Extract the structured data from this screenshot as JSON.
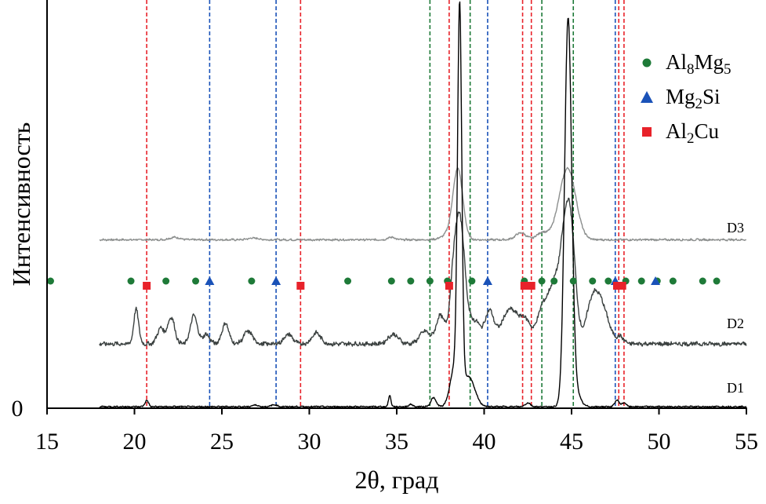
{
  "chart_data": {
    "type": "line",
    "xlabel": "2θ, град",
    "ylabel": "Интенсивность",
    "xlim": [
      15,
      55
    ],
    "x_ticks": [
      "15",
      "20",
      "25",
      "30",
      "35",
      "40",
      "45",
      "50",
      "55"
    ],
    "y_ticks": [
      "0"
    ],
    "grid": false,
    "legend_placement": "top-right",
    "legend": [
      {
        "base": "Al",
        "sub1": "8",
        "mid": "Mg",
        "sub2": "5",
        "marker": "circle",
        "color": "#1e7a38"
      },
      {
        "base": "Mg",
        "sub1": "2",
        "mid": "Si",
        "sub2": "",
        "marker": "triangle",
        "color": "#1a52b8"
      },
      {
        "base": "Al",
        "sub1": "2",
        "mid": "Cu",
        "sub2": "",
        "marker": "square",
        "color": "#e8222a"
      }
    ],
    "series": [
      {
        "name": "D3",
        "color": "#8c8f8e",
        "baseline": 3,
        "noise": 0.5,
        "peaks": [
          [
            22.3,
            1.4,
            0.3
          ],
          [
            26.8,
            1.0,
            0.3
          ],
          [
            34.7,
            1.5,
            0.2
          ],
          [
            38.0,
            3,
            0.4
          ],
          [
            38.5,
            40,
            0.28
          ],
          [
            42.1,
            4,
            0.3
          ],
          [
            43.3,
            4,
            0.3
          ],
          [
            44.2,
            4,
            0.4
          ],
          [
            44.8,
            40,
            0.45
          ]
        ]
      },
      {
        "name": "D2",
        "color": "#3b4140",
        "baseline": 0,
        "noise": 0.6,
        "peaks": [
          [
            20.1,
            11,
            0.14
          ],
          [
            21.5,
            5,
            0.2
          ],
          [
            22.1,
            8.5,
            0.2
          ],
          [
            23.4,
            9,
            0.2
          ],
          [
            24.1,
            3,
            0.2
          ],
          [
            25.2,
            6.5,
            0.2
          ],
          [
            26.5,
            4,
            0.25
          ],
          [
            28.8,
            3,
            0.25
          ],
          [
            30.4,
            3.5,
            0.25
          ],
          [
            34.8,
            3,
            0.3
          ],
          [
            36.6,
            4,
            0.3
          ],
          [
            37.5,
            9,
            0.25
          ],
          [
            38.2,
            10,
            0.2
          ],
          [
            38.6,
            40,
            0.3
          ],
          [
            39.5,
            7,
            0.3
          ],
          [
            40.3,
            10,
            0.25
          ],
          [
            41.5,
            11,
            0.5
          ],
          [
            42.4,
            6,
            0.3
          ],
          [
            43.3,
            10,
            0.3
          ],
          [
            44.0,
            18,
            0.35
          ],
          [
            44.5,
            14,
            0.25
          ],
          [
            44.9,
            40,
            0.3
          ],
          [
            46.1,
            7,
            0.3
          ],
          [
            46.6,
            14,
            0.45
          ],
          [
            47.8,
            2,
            0.2
          ]
        ]
      },
      {
        "name": "D1",
        "color": "#000000",
        "baseline": 0,
        "noise": 0.25,
        "peaks": [
          [
            20.7,
            2.5,
            0.1
          ],
          [
            26.9,
            0.7,
            0.15
          ],
          [
            28.0,
            0.8,
            0.15
          ],
          [
            34.6,
            4.5,
            0.07
          ],
          [
            35.8,
            1.0,
            0.1
          ],
          [
            37.1,
            3.5,
            0.15
          ],
          [
            38.3,
            15,
            0.25
          ],
          [
            38.6,
            150,
            0.12
          ],
          [
            39.1,
            12,
            0.35
          ],
          [
            42.5,
            1.5,
            0.15
          ],
          [
            44.8,
            150,
            0.2
          ],
          [
            45.1,
            8,
            0.3
          ],
          [
            47.6,
            2.7,
            0.12
          ],
          [
            48.0,
            1.6,
            0.12
          ]
        ]
      }
    ],
    "phase_markers": {
      "Al8Mg5": [
        15.2,
        19.8,
        21.8,
        23.5,
        26.7,
        32.2,
        34.7,
        35.8,
        36.9,
        37.9,
        39.3,
        42.3,
        43.3,
        44.0,
        45.1,
        46.2,
        47.1,
        48.1,
        49.0,
        49.9,
        50.8,
        52.5,
        53.3
      ],
      "Mg2Si": [
        24.3,
        28.1,
        40.2,
        47.5,
        49.8
      ],
      "Al2Cu": [
        20.7,
        29.5,
        38.0,
        42.3,
        42.7,
        47.6,
        47.9
      ]
    },
    "reference_lines": {
      "Al8Mg5": [
        36.9,
        39.2,
        43.3,
        45.1
      ],
      "Mg2Si": [
        24.3,
        28.1,
        40.2,
        47.5
      ],
      "Al2Cu": [
        20.7,
        29.5,
        38.0,
        42.2,
        42.7,
        47.7,
        48.0
      ]
    }
  }
}
